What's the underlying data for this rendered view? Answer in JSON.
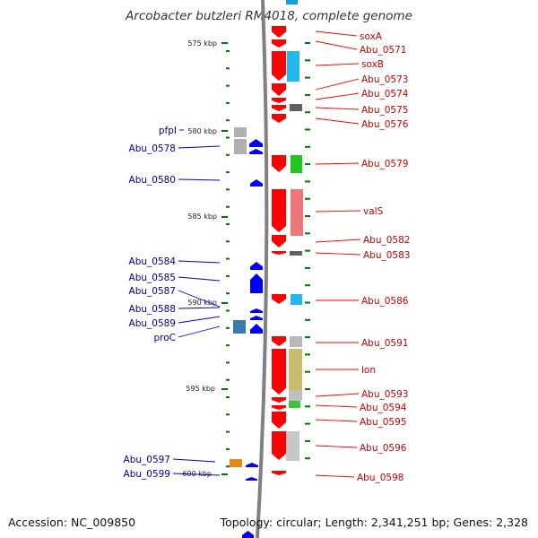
{
  "title": "Arcobacter butzleri RM4018, complete genome",
  "footer": {
    "accession": "Accession: NC_009850",
    "summary": "Topology: circular; Length: 2,341,251 bp; Genes: 2,328"
  },
  "colors": {
    "forward_cds": "#ff0000",
    "reverse_cds": "#0000ff",
    "right_label": "#cc0000",
    "left_label": "#000099",
    "leader_right": "#ff0000",
    "leader_left": "#0000cc",
    "backbone": "#808080",
    "tick": "#007700"
  },
  "ticks": [
    "575 kbp",
    "580 kbp",
    "585 kbp",
    "590 kbp",
    "595 kbp",
    "600 kbp"
  ],
  "right_labels": [
    "soxA",
    "Abu_0571",
    "soxB",
    "Abu_0573",
    "Abu_0574",
    "Abu_0575",
    "Abu_0576",
    "Abu_0579",
    "valS",
    "Abu_0582",
    "Abu_0583",
    "Abu_0586",
    "Abu_0591",
    "lon",
    "Abu_0593",
    "Abu_0594",
    "Abu_0595",
    "Abu_0596",
    "Abu_0598"
  ],
  "left_labels": [
    "pfpI",
    "Abu_0578",
    "Abu_0580",
    "Abu_0584",
    "Abu_0585",
    "Abu_0587",
    "Abu_0588",
    "Abu_0589",
    "proC",
    "Abu_0597",
    "Abu_0599"
  ]
}
